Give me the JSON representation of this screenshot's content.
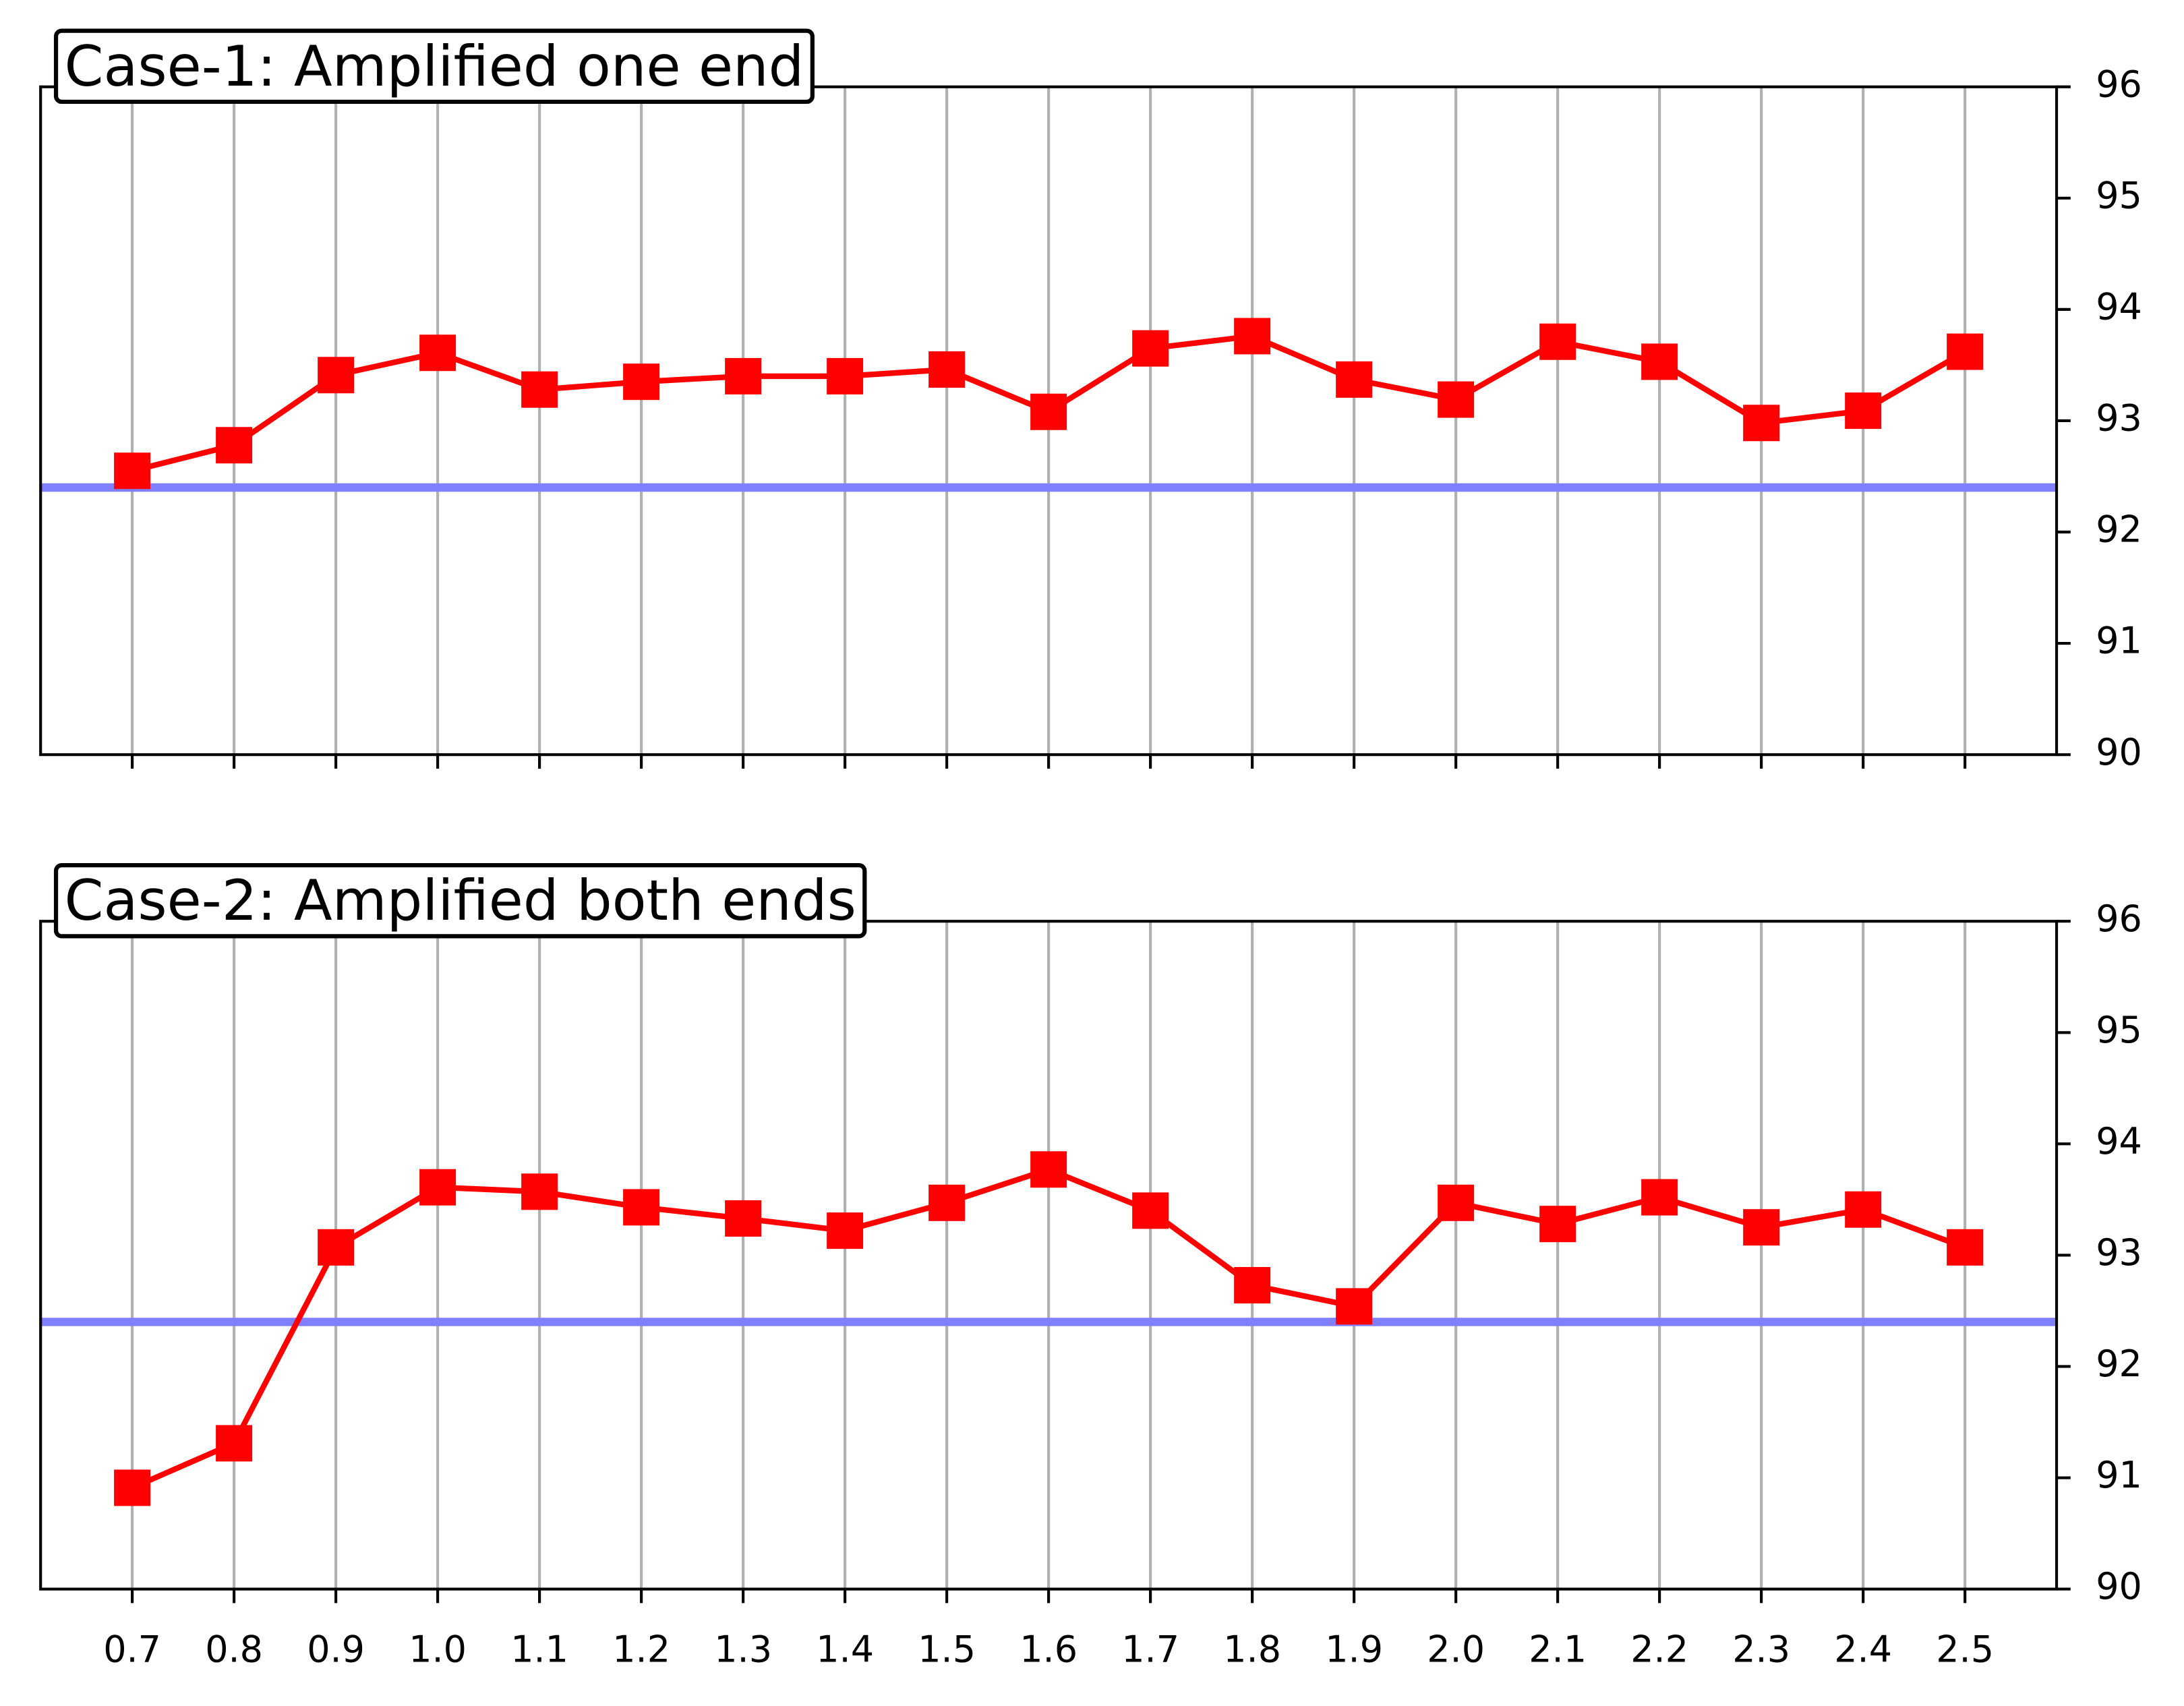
{
  "chart_data": [
    {
      "type": "line",
      "title": "Case-1: Amplified one end",
      "series": [
        {
          "color": "#ff0000",
          "values": [
            92.55,
            92.78,
            93.41,
            93.61,
            93.28,
            93.35,
            93.4,
            93.4,
            93.46,
            93.08,
            93.65,
            93.76,
            93.37,
            93.19,
            93.71,
            93.53,
            92.98,
            93.09,
            93.62
          ]
        }
      ],
      "hline": {
        "value": 92.4,
        "color": "#7f7fff"
      },
      "ylim": [
        90,
        96
      ],
      "yticks": [
        90,
        91,
        92,
        93,
        94,
        95,
        96
      ],
      "grid": "x"
    },
    {
      "type": "line",
      "title": "Case-2: Amplified both ends",
      "categories": [
        "0.7",
        "0.8",
        "0.9",
        "1.0",
        "1.1",
        "1.2",
        "1.3",
        "1.4",
        "1.5",
        "1.6",
        "1.7",
        "1.8",
        "1.9",
        "2.0",
        "2.1",
        "2.2",
        "2.3",
        "2.4",
        "2.5"
      ],
      "series": [
        {
          "color": "#ff0000",
          "values": [
            90.91,
            91.31,
            93.07,
            93.61,
            93.57,
            93.43,
            93.33,
            93.22,
            93.47,
            93.77,
            93.4,
            92.73,
            92.54,
            93.47,
            93.28,
            93.52,
            93.25,
            93.41,
            93.07
          ]
        }
      ],
      "hline": {
        "value": 92.4,
        "color": "#7f7fff"
      },
      "ylim": [
        90,
        96
      ],
      "yticks": [
        90,
        91,
        92,
        93,
        94,
        95,
        96
      ],
      "grid": "x"
    }
  ]
}
